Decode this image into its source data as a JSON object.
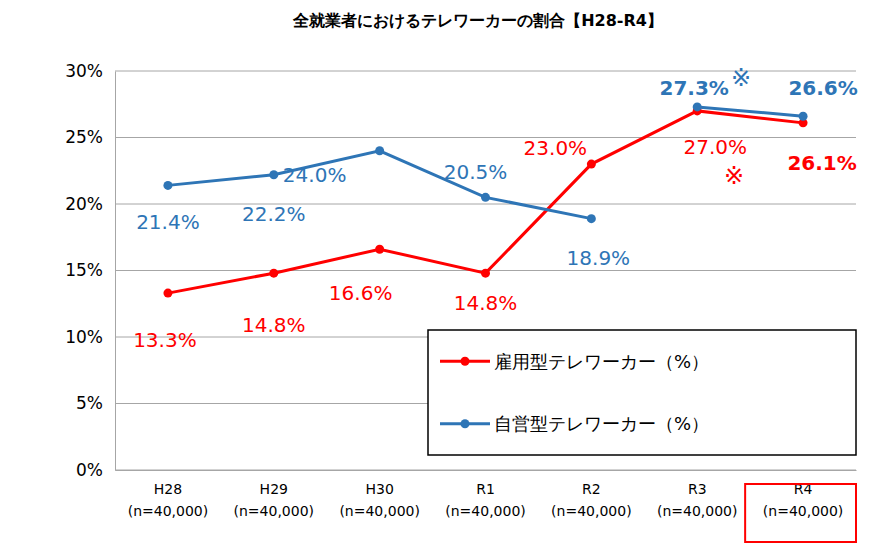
{
  "chart_data": {
    "type": "line",
    "title": "全就業者におけるテレワーカーの割合【H28-R4】",
    "categories": [
      "H28\n(n=40,000)",
      "H29\n(n=40,000)",
      "H30\n(n=40,000)",
      "R1\n(n=40,000)",
      "R2\n(n=40,000)",
      "R3\n(n=40,000)",
      "R4\n(n=40,000)"
    ],
    "series": [
      {
        "name": "雇用型テレワーカー（%）",
        "color": "#ff0000",
        "marker": "circle",
        "values": [
          13.3,
          14.8,
          16.6,
          14.8,
          23.0,
          27.0,
          26.1
        ],
        "value_labels": [
          "13.3%",
          "14.8%",
          "16.6%",
          "14.8%",
          "23.0%",
          "27.0%",
          "26.1%"
        ]
      },
      {
        "name": "自営型テレワーカー（%）",
        "color": "#2e75b6",
        "marker": "circle",
        "values": [
          21.4,
          22.2,
          24.0,
          20.5,
          18.9,
          null,
          null
        ],
        "value_labels": [
          "21.4%",
          "22.2%",
          "24.0%",
          "20.5%",
          "18.9%",
          null,
          null
        ]
      },
      {
        "name": "自営型テレワーカー（%）",
        "color": "#2e75b6",
        "marker": "circle",
        "values": [
          null,
          null,
          null,
          null,
          null,
          27.3,
          26.6
        ],
        "value_labels": [
          null,
          null,
          null,
          null,
          null,
          "27.3%",
          "26.6%"
        ]
      }
    ],
    "ylim": [
      0,
      30
    ],
    "yticks": [
      {
        "value": 0,
        "label": "0%"
      },
      {
        "value": 5,
        "label": "5%"
      },
      {
        "value": 10,
        "label": "10%"
      },
      {
        "value": 15,
        "label": "15%"
      },
      {
        "value": 20,
        "label": "20%"
      },
      {
        "value": 25,
        "label": "25%"
      },
      {
        "value": 30,
        "label": "30%"
      }
    ],
    "grid": true,
    "legend": "lower right",
    "data_labels": true,
    "annotations": [
      {
        "text": "※",
        "color": "#2e75b6"
      },
      {
        "text": "※",
        "color": "#ff0000"
      }
    ]
  }
}
